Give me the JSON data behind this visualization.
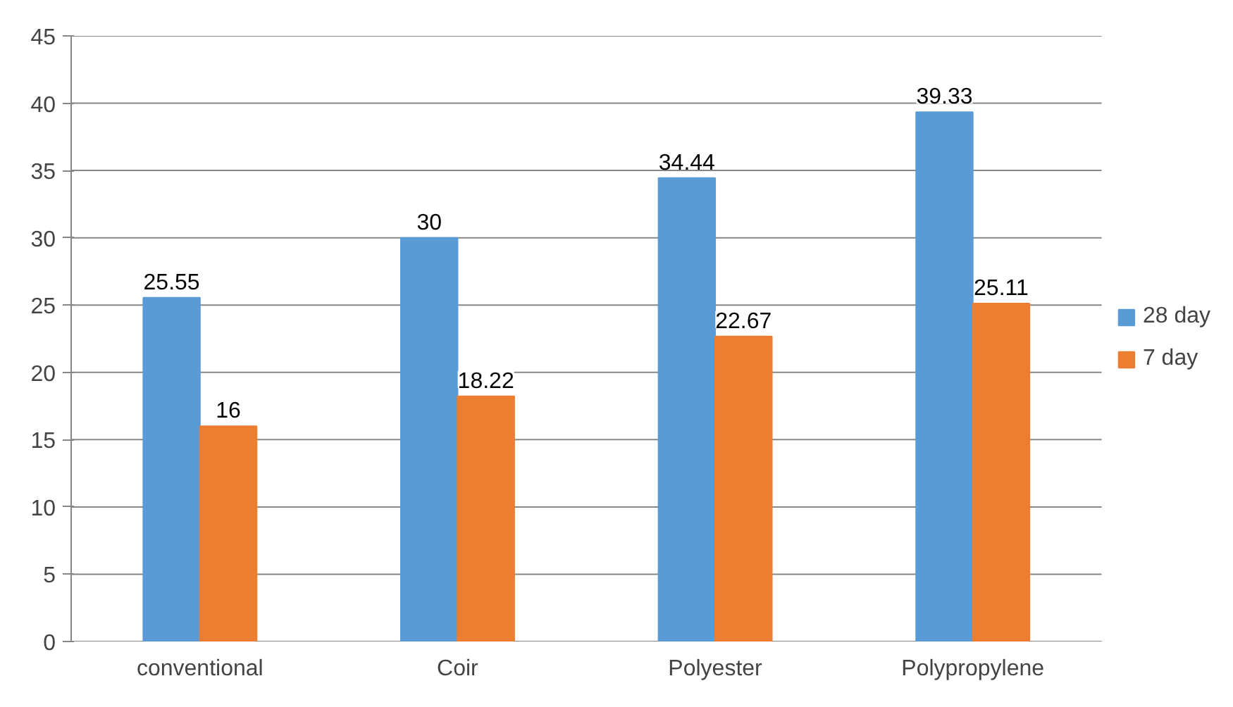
{
  "chart_data": {
    "type": "bar",
    "categories": [
      "conventional",
      "Coir",
      "Polyester",
      "Polypropylene"
    ],
    "series": [
      {
        "name": "28 day",
        "color": "#5b9bd5",
        "values": [
          25.55,
          30,
          34.44,
          39.33
        ]
      },
      {
        "name": "7 day",
        "color": "#ed7d31",
        "values": [
          16,
          18.22,
          22.67,
          25.11
        ]
      }
    ],
    "ylim": [
      0,
      45
    ],
    "yticks": [
      0,
      5,
      10,
      15,
      20,
      25,
      30,
      35,
      40,
      45
    ],
    "grid": "y",
    "legend": "right",
    "data_labels": true
  }
}
